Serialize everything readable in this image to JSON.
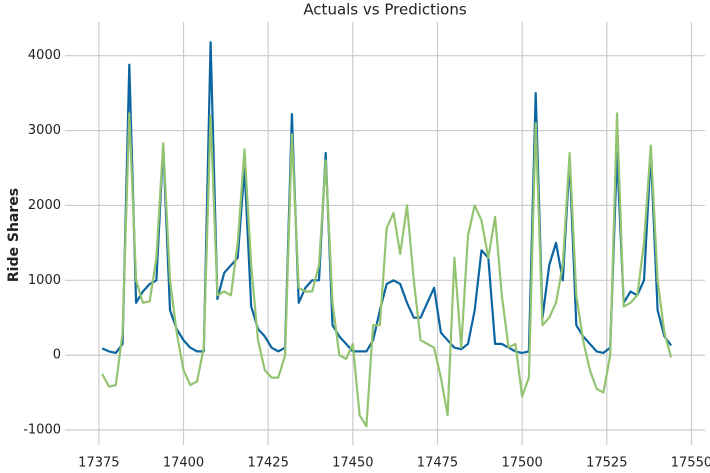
{
  "chart_data": {
    "type": "line",
    "title": "Actuals vs Predictions",
    "ylabel": "Ride Shares",
    "x": [
      17376,
      17378,
      17380,
      17382,
      17384,
      17386,
      17388,
      17390,
      17392,
      17394,
      17396,
      17398,
      17400,
      17402,
      17404,
      17406,
      17408,
      17410,
      17412,
      17414,
      17416,
      17418,
      17420,
      17422,
      17424,
      17426,
      17428,
      17430,
      17432,
      17434,
      17436,
      17438,
      17440,
      17442,
      17444,
      17446,
      17448,
      17450,
      17452,
      17454,
      17456,
      17458,
      17460,
      17462,
      17464,
      17466,
      17468,
      17470,
      17472,
      17474,
      17476,
      17478,
      17480,
      17482,
      17484,
      17486,
      17488,
      17490,
      17492,
      17494,
      17496,
      17498,
      17500,
      17502,
      17504,
      17506,
      17508,
      17510,
      17512,
      17514,
      17516,
      17518,
      17520,
      17522,
      17524,
      17526,
      17528,
      17530,
      17532,
      17534,
      17536,
      17538,
      17540,
      17542,
      17544
    ],
    "series": [
      {
        "color": "#0b65a0",
        "values": [
          90,
          50,
          30,
          150,
          3880,
          700,
          850,
          950,
          1000,
          2800,
          600,
          350,
          200,
          100,
          50,
          50,
          4180,
          750,
          1100,
          1200,
          1300,
          2500,
          650,
          350,
          250,
          100,
          50,
          100,
          3220,
          700,
          900,
          1000,
          1000,
          2700,
          400,
          250,
          150,
          50,
          50,
          50,
          200,
          600,
          950,
          1000,
          950,
          700,
          500,
          500,
          700,
          900,
          300,
          200,
          100,
          80,
          150,
          600,
          1400,
          1300,
          150,
          150,
          100,
          50,
          30,
          50,
          3500,
          500,
          1200,
          1500,
          1000,
          2600,
          400,
          250,
          150,
          50,
          30,
          100,
          2700,
          700,
          850,
          800,
          1000,
          2700,
          600,
          250,
          130
        ]
      },
      {
        "color": "#94c472",
        "values": [
          -250,
          -420,
          -400,
          300,
          3230,
          1000,
          700,
          720,
          1300,
          2830,
          1000,
          300,
          -200,
          -400,
          -350,
          100,
          3200,
          800,
          850,
          800,
          1500,
          2750,
          1200,
          200,
          -200,
          -300,
          -300,
          0,
          2950,
          900,
          850,
          850,
          1200,
          2600,
          700,
          0,
          -50,
          150,
          -800,
          -950,
          400,
          400,
          1700,
          1900,
          1350,
          2000,
          1000,
          200,
          150,
          100,
          -300,
          -800,
          1300,
          100,
          1600,
          2000,
          1800,
          1300,
          1850,
          800,
          100,
          150,
          -550,
          -300,
          3100,
          400,
          500,
          700,
          1200,
          2700,
          800,
          200,
          -200,
          -450,
          -500,
          0,
          3230,
          650,
          700,
          800,
          1500,
          2800,
          1000,
          300,
          -30
        ]
      }
    ],
    "xlim": [
      17365,
      17554
    ],
    "ylim": [
      -1200,
      4450
    ],
    "xticks": [
      17375,
      17400,
      17425,
      17450,
      17475,
      17500,
      17525,
      17550
    ],
    "yticks": [
      -1000,
      0,
      1000,
      2000,
      3000,
      4000
    ],
    "grid": true
  }
}
